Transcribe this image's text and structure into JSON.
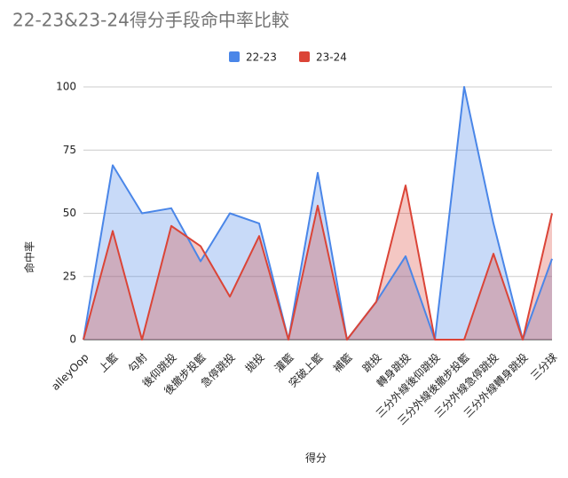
{
  "chart_data": {
    "type": "area",
    "title": "22-23&23-24得分手段命中率比較",
    "x_label": "得分",
    "y_label": "命中率",
    "categories": [
      "alleyOop",
      "上籃",
      "勾射",
      "後仰跳投",
      "後撤步投籃",
      "急停跳投",
      "拋投",
      "灌籃",
      "突破上籃",
      "補籃",
      "跳投",
      "轉身跳投",
      "三分外線後仰跳投",
      "三分外線後撤步投籃",
      "三分外線急停跳投",
      "三分外線轉身跳投",
      "三分球"
    ],
    "series": [
      {
        "name": "22-23",
        "color": "#4a86e8",
        "values": [
          0,
          69,
          50,
          52,
          31,
          50,
          46,
          0,
          66,
          0,
          15,
          33,
          0,
          100,
          46,
          0,
          32
        ]
      },
      {
        "name": "23-24",
        "color": "#db4437",
        "values": [
          0,
          43,
          0,
          45,
          37,
          17,
          41,
          0,
          53,
          0,
          15,
          61,
          0,
          0,
          34,
          0,
          50
        ]
      }
    ],
    "ylim": [
      0,
      100
    ],
    "yticks": [
      0,
      25,
      50,
      75,
      100
    ],
    "grid": true,
    "legend": "top"
  }
}
